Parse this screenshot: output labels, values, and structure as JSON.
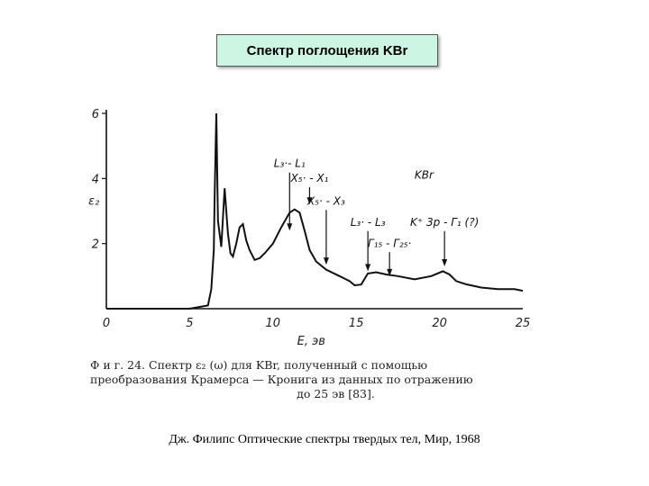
{
  "slide_title": "Спектр поглощения KBr",
  "caption_lines": [
    "Ф и г. 24. Спектр ε₂ (ω) для KBr, полученный с помощью",
    "преобразования Крамерса — Кронига из данных по отражению",
    "до 25 эв [83]."
  ],
  "source": "Дж. Филипс Оптические спектры твердых тел, Мир, 1968",
  "chart_data": {
    "type": "line",
    "title": "",
    "xlabel": "E, эв",
    "ylabel": "ε₂",
    "xlim": [
      0,
      25
    ],
    "ylim": [
      0,
      6
    ],
    "xticks": [
      "0",
      "5",
      "10",
      "15",
      "20",
      "25"
    ],
    "yticks": [
      "2",
      "4",
      "6"
    ],
    "inset_label": "KBr",
    "series": [
      {
        "x": [
          0,
          5,
          6.1,
          6.3,
          6.45,
          6.5,
          6.6,
          6.7,
          6.9,
          7.1,
          7.3,
          7.45,
          7.6,
          7.8,
          8.0,
          8.2,
          8.4,
          8.6,
          8.9,
          9.2,
          9.5,
          10.0,
          10.5,
          11.0,
          11.3,
          11.6,
          11.9,
          12.2,
          12.6,
          13.2,
          14.0,
          14.6,
          14.9,
          15.3,
          15.7,
          16.2,
          16.8,
          17.5,
          18.5,
          19.5,
          20.2,
          20.6,
          21.0,
          21.6,
          22.5,
          23.5,
          24.5,
          25
        ],
        "y": [
          0,
          0,
          0.1,
          0.6,
          1.8,
          3.4,
          6.0,
          2.7,
          1.9,
          3.7,
          2.3,
          1.7,
          1.6,
          2.0,
          2.5,
          2.6,
          2.1,
          1.8,
          1.5,
          1.55,
          1.7,
          2.0,
          2.5,
          2.95,
          3.05,
          2.95,
          2.4,
          1.8,
          1.45,
          1.2,
          1.0,
          0.85,
          0.72,
          0.74,
          1.08,
          1.12,
          1.05,
          1.0,
          0.9,
          1.0,
          1.15,
          1.05,
          0.85,
          0.75,
          0.65,
          0.6,
          0.6,
          0.55
        ]
      }
    ],
    "annotations": [
      {
        "label": "L₃·- L₁",
        "x": 11.0,
        "y_tip": 2.4
      },
      {
        "label": "X₅· - X₁",
        "x": 12.2,
        "y_tip": 3.2
      },
      {
        "label": "X₅· - X₃",
        "x": 13.2,
        "y_tip": 1.35
      },
      {
        "label": "L₃· - L₃",
        "x": 15.7,
        "y_tip": 1.15
      },
      {
        "label": "Γ₁₅ - Γ₂₅·",
        "x": 17.0,
        "y_tip": 1.0
      },
      {
        "label": "K⁺ 3p - Γ₁ (?)",
        "x": 20.3,
        "y_tip": 1.3
      }
    ]
  }
}
